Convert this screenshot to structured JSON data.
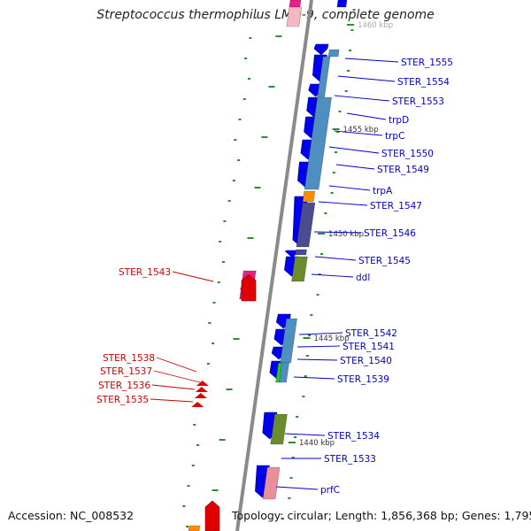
{
  "title": "Streptococcus thermophilus LMD-9, complete genome",
  "footer": {
    "accession": "Accession: NC_008532",
    "topology": "Topology: circular; Length: 1,856,368 bp; Genes: 1,795"
  },
  "colors": {
    "backbone": "#888888",
    "cds_forward": "#0000ee",
    "cds_reverse": "#e00000",
    "label_forward": "#0000cc",
    "label_reverse": "#cc0000",
    "cog_blue": "#4f8fbf",
    "cog_purple": "#4b4b90",
    "cog_olive": "#6b8b2f",
    "cog_pink": "#e8909a",
    "cog_magenta": "#e8208a",
    "cog_orange": "#ff8c00",
    "cog_green": "#22cc22",
    "gc_marks": "#2e8b2e"
  },
  "kbp_ticks": [
    {
      "label": "1460 kbp"
    },
    {
      "label": "1455 kbp"
    },
    {
      "label": "1450 kbp"
    },
    {
      "label": "1445 kbp"
    },
    {
      "label": "1440 kbp"
    }
  ],
  "genes_forward": [
    {
      "label": "STER_1555"
    },
    {
      "label": "STER_1554"
    },
    {
      "label": "STER_1553"
    },
    {
      "label": "trpD"
    },
    {
      "label": "trpC"
    },
    {
      "label": "STER_1550"
    },
    {
      "label": "STER_1549"
    },
    {
      "label": "trpA"
    },
    {
      "label": "STER_1547"
    },
    {
      "label": "STER_1546"
    },
    {
      "label": "STER_1545"
    },
    {
      "label": "ddl"
    },
    {
      "label": "STER_1542"
    },
    {
      "label": "STER_1541"
    },
    {
      "label": "STER_1540"
    },
    {
      "label": "STER_1539"
    },
    {
      "label": "STER_1534"
    },
    {
      "label": "STER_1533"
    },
    {
      "label": "prfC"
    }
  ],
  "genes_reverse": [
    {
      "label": "STER_1543"
    },
    {
      "label": "STER_1538"
    },
    {
      "label": "STER_1537"
    },
    {
      "label": "STER_1536"
    },
    {
      "label": "STER_1535"
    }
  ]
}
